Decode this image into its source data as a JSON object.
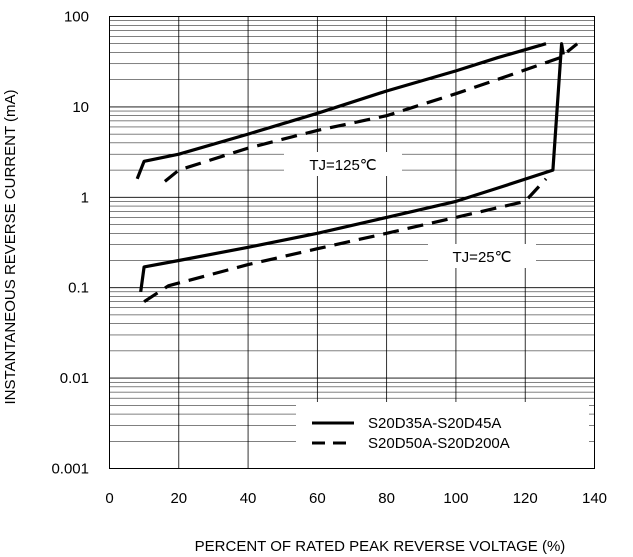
{
  "chart_data": {
    "type": "line",
    "xlabel": "PERCENT OF RATED PEAK REVERSE VOLTAGE (%)",
    "ylabel": "INSTANTANEOUS REVERSE CURRENT (mA)",
    "xlim": [
      0,
      140
    ],
    "ylim": [
      0.001,
      100
    ],
    "y_scale": "log",
    "grid": true,
    "x_ticks": [
      0,
      20,
      40,
      60,
      80,
      100,
      120,
      140
    ],
    "x_tick_labels": [
      "0",
      "20",
      "40",
      "60",
      "80",
      "100",
      "120",
      "140"
    ],
    "y_ticks": [
      0.001,
      0.01,
      0.1,
      1,
      10,
      100
    ],
    "y_tick_labels": [
      "0.001",
      "0.01",
      "0.1",
      "1",
      "10",
      "100"
    ],
    "legend_position": "bottom-right",
    "series": [
      {
        "name": "S20D35A-S20D45A",
        "style": "solid",
        "color": "#000000",
        "segments": [
          {
            "x": [
              8,
              10,
              20,
              40,
              60,
              80,
              100,
              112,
              126
            ],
            "y": [
              1.6,
              2.5,
              3.0,
              5.0,
              8.5,
              15,
              25,
              35,
              50
            ]
          },
          {
            "x": [
              9,
              10,
              20,
              40,
              60,
              80,
              100,
              113,
              128,
              130.5,
              131
            ],
            "y": [
              0.09,
              0.17,
              0.2,
              0.28,
              0.4,
              0.6,
              0.9,
              1.3,
              2.0,
              50,
              38
            ]
          }
        ]
      },
      {
        "name": "S20D50A-S20D200A",
        "style": "dashed",
        "color": "#000000",
        "segments": [
          {
            "x": [
              16,
              20,
              40,
              60,
              80,
              100,
              115,
              130,
              135
            ],
            "y": [
              1.5,
              2.0,
              3.5,
              5.5,
              8.0,
              14,
              22,
              35,
              50
            ]
          },
          {
            "x": [
              10,
              17,
              40,
              60,
              80,
              100,
              120,
              126
            ],
            "y": [
              0.07,
              0.105,
              0.18,
              0.27,
              0.4,
              0.6,
              0.9,
              1.6
            ]
          }
        ]
      }
    ],
    "annotations": [
      {
        "text": "TJ=125℃",
        "x": 72,
        "y": 2.3
      },
      {
        "text": "TJ=25℃",
        "x": 113,
        "y": 0.38
      }
    ]
  }
}
